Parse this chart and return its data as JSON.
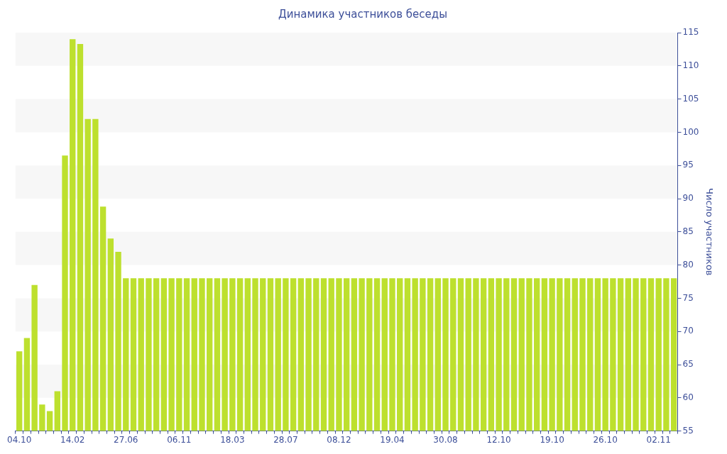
{
  "chart_data": {
    "type": "bar",
    "title": "Динамика участников беседы",
    "ylabel": "Число участников",
    "categories": [
      "04.10",
      null,
      null,
      null,
      null,
      null,
      null,
      "14.02",
      null,
      null,
      null,
      null,
      null,
      null,
      "27.06",
      null,
      null,
      null,
      null,
      null,
      null,
      "06.11",
      null,
      null,
      null,
      null,
      null,
      null,
      "18.03",
      null,
      null,
      null,
      null,
      null,
      null,
      "28.07",
      null,
      null,
      null,
      null,
      null,
      null,
      "08.12",
      null,
      null,
      null,
      null,
      null,
      null,
      "19.04",
      null,
      null,
      null,
      null,
      null,
      null,
      "30.08",
      null,
      null,
      null,
      null,
      null,
      null,
      "12.10",
      null,
      null,
      null,
      null,
      null,
      null,
      "19.10",
      null,
      null,
      null,
      null,
      null,
      null,
      "26.10",
      null,
      null,
      null,
      null,
      null,
      null,
      "02.11",
      null,
      null
    ],
    "values": [
      67,
      69,
      77,
      59,
      58,
      61,
      96.5,
      114,
      113.3,
      102,
      102,
      88.8,
      84,
      82,
      78,
      78,
      78,
      78,
      78,
      78,
      78,
      78,
      78,
      78,
      78,
      78,
      78,
      78,
      78,
      78,
      78,
      78,
      78,
      78,
      78,
      78,
      78,
      78,
      78,
      78,
      78,
      78,
      78,
      78,
      78,
      78,
      78,
      78,
      78,
      78,
      78,
      78,
      78,
      78,
      78,
      78,
      78,
      78,
      78,
      78,
      78,
      78,
      78,
      78,
      78,
      78,
      78,
      78,
      78,
      78,
      78,
      78,
      78,
      78,
      78,
      78,
      78,
      78,
      78,
      78,
      78,
      78,
      78,
      78,
      78,
      78,
      78
    ],
    "color": "#bde02e",
    "ylim": [
      55,
      115
    ],
    "yticks": [
      55,
      60,
      65,
      70,
      75,
      80,
      85,
      90,
      95,
      100,
      105,
      110,
      115
    ],
    "legend": false
  }
}
